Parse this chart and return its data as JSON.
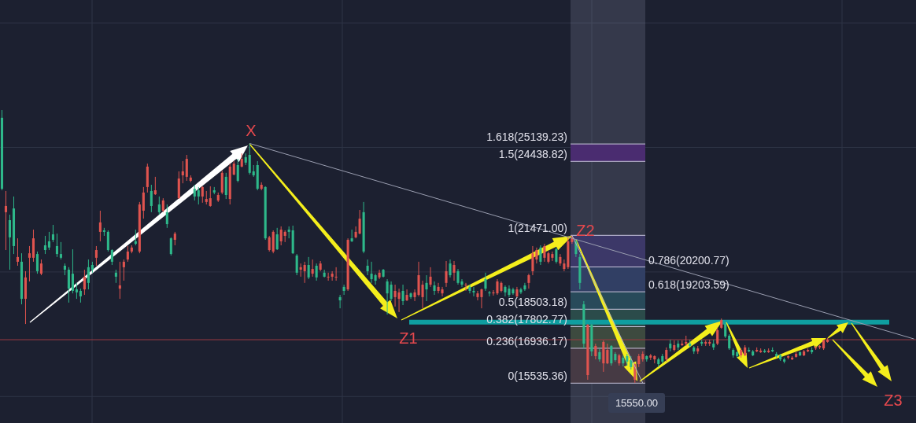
{
  "chart_data": {
    "type": "candlestick",
    "categories": [
      null,
      null,
      null,
      null,
      null,
      null,
      null,
      null,
      null,
      null,
      null,
      null,
      null,
      null,
      null,
      null,
      null,
      null,
      null,
      null,
      null,
      null,
      null,
      null,
      null,
      null,
      null,
      null,
      null,
      null,
      null,
      null,
      null,
      null,
      null,
      null,
      null,
      null,
      null,
      null,
      null,
      null,
      null,
      null,
      null,
      null,
      null,
      null,
      null,
      null,
      null,
      null,
      null,
      null,
      null,
      null,
      null,
      null,
      null,
      null,
      null,
      null,
      null,
      null,
      null,
      null,
      null,
      null,
      null,
      null,
      null,
      null,
      null,
      null,
      null,
      null,
      null,
      null,
      null,
      null,
      null,
      null,
      null,
      null,
      null,
      null,
      null,
      null,
      null,
      null,
      null,
      null,
      null,
      null,
      null,
      null,
      null,
      null,
      null,
      null,
      null,
      null,
      null,
      null,
      null,
      null,
      null,
      null,
      null,
      null,
      null,
      null,
      null,
      null,
      null,
      null,
      null,
      null,
      null,
      null,
      null,
      null,
      null,
      null,
      null,
      null,
      null,
      null,
      null,
      null,
      null,
      null,
      null,
      null,
      null,
      null,
      null,
      null,
      null,
      null,
      null,
      null,
      null,
      null,
      null,
      null,
      null,
      null,
      null,
      null,
      null,
      null,
      null,
      null,
      null,
      null,
      null,
      null,
      null,
      null,
      null,
      null,
      null,
      null,
      null,
      null,
      null,
      null,
      null,
      null,
      null,
      null,
      null,
      null,
      null,
      null,
      null,
      null,
      null,
      null,
      null,
      null,
      null,
      null,
      null,
      null,
      null,
      null,
      null,
      null,
      null,
      null,
      null,
      null,
      null,
      null,
      null,
      null,
      null,
      null,
      null,
      null,
      null,
      null,
      null,
      null,
      null,
      null,
      null,
      null,
      null,
      null,
      null,
      null,
      null,
      null,
      null,
      null,
      null,
      null,
      null,
      null,
      null,
      null,
      null,
      null,
      null,
      null,
      null,
      null,
      null,
      null,
      null
    ],
    "ohlc": [
      [
        23340,
        26500,
        23280,
        26190
      ],
      [
        22650,
        23250,
        20880,
        22400
      ],
      [
        21390,
        22300,
        20090,
        22080
      ],
      [
        21040,
        23030,
        20720,
        22550
      ],
      [
        20600,
        21350,
        20250,
        20410
      ],
      [
        18920,
        20750,
        18700,
        20410
      ],
      [
        19780,
        20030,
        17910,
        18920
      ],
      [
        20750,
        21040,
        19620,
        20570
      ],
      [
        21350,
        21700,
        20410,
        20570
      ],
      [
        20030,
        20820,
        19930,
        20720
      ],
      [
        20340,
        20500,
        19870,
        19930
      ],
      [
        20880,
        21450,
        20720,
        21070
      ],
      [
        20980,
        21610,
        20880,
        21230
      ],
      [
        21290,
        21890,
        21200,
        21510
      ],
      [
        20720,
        21540,
        20600,
        21040
      ],
      [
        20570,
        21200,
        20500,
        20720
      ],
      [
        20090,
        20340,
        19870,
        20250
      ],
      [
        19330,
        20190,
        18770,
        20090
      ],
      [
        19240,
        20910,
        19140,
        19930
      ],
      [
        19180,
        19560,
        18920,
        19300
      ],
      [
        19020,
        19330,
        18770,
        19240
      ],
      [
        19810,
        20090,
        19080,
        19300
      ],
      [
        19560,
        20500,
        19300,
        20190
      ],
      [
        20090,
        20410,
        19970,
        20280
      ],
      [
        20880,
        21040,
        20250,
        20570
      ],
      [
        21990,
        22460,
        21230,
        21610
      ],
      [
        21610,
        21770,
        21450,
        21670
      ],
      [
        20880,
        21670,
        20820,
        21610
      ],
      [
        20410,
        20910,
        20280,
        20880
      ],
      [
        19810,
        20090,
        19560,
        19970
      ],
      [
        19460,
        20410,
        18920,
        19330
      ],
      [
        20410,
        20500,
        19650,
        20190
      ],
      [
        20820,
        21040,
        20410,
        20500
      ],
      [
        20980,
        21070,
        20750,
        20820
      ],
      [
        21130,
        21700,
        21070,
        21230
      ],
      [
        22710,
        22810,
        20750,
        20820
      ],
      [
        23190,
        23410,
        22140,
        22460
      ],
      [
        24230,
        24350,
        23190,
        23410
      ],
      [
        22650,
        23500,
        22400,
        23250
      ],
      [
        23280,
        23820,
        23090,
        23120
      ],
      [
        22400,
        23030,
        22300,
        22710
      ],
      [
        22870,
        22960,
        22400,
        22460
      ],
      [
        21920,
        22710,
        21770,
        22400
      ],
      [
        20720,
        21390,
        20660,
        21350
      ],
      [
        21540,
        21610,
        21070,
        21290
      ],
      [
        23750,
        24040,
        22930,
        22960
      ],
      [
        24040,
        24450,
        23560,
        23880
      ],
      [
        24540,
        24700,
        23660,
        23820
      ],
      [
        23790,
        23880,
        23600,
        23660
      ],
      [
        23030,
        23500,
        22870,
        23340
      ],
      [
        23030,
        23410,
        22710,
        23280
      ],
      [
        23410,
        23440,
        22780,
        23030
      ],
      [
        22930,
        23250,
        22710,
        22810
      ],
      [
        22960,
        23440,
        22620,
        22650
      ],
      [
        23190,
        23410,
        23120,
        23280
      ],
      [
        23090,
        23190,
        22810,
        22870
      ],
      [
        23980,
        24070,
        23120,
        23190
      ],
      [
        23090,
        23980,
        22930,
        23820
      ],
      [
        24230,
        24350,
        22710,
        22930
      ],
      [
        24350,
        24450,
        23880,
        23910
      ],
      [
        23660,
        24540,
        23600,
        24290
      ],
      [
        24540,
        24760,
        24200,
        24230
      ],
      [
        24390,
        24760,
        24290,
        24610
      ],
      [
        23980,
        25160,
        23910,
        24700
      ],
      [
        23880,
        24290,
        23820,
        24040
      ],
      [
        23340,
        24450,
        23280,
        24290
      ],
      [
        23500,
        23600,
        23280,
        23340
      ],
      [
        21350,
        23440,
        21290,
        23410
      ],
      [
        21390,
        21450,
        20820,
        20880
      ],
      [
        21610,
        21670,
        20750,
        20820
      ],
      [
        20910,
        21770,
        20880,
        21510
      ],
      [
        21700,
        21830,
        21070,
        21230
      ],
      [
        21610,
        21670,
        21200,
        21450
      ],
      [
        21610,
        21830,
        21350,
        21700
      ],
      [
        20750,
        21860,
        20720,
        21670
      ],
      [
        19970,
        20720,
        19870,
        20660
      ],
      [
        20190,
        20340,
        19810,
        20090
      ],
      [
        20280,
        20410,
        19560,
        20030
      ],
      [
        19780,
        20600,
        19710,
        20280
      ],
      [
        20120,
        20500,
        19810,
        19930
      ],
      [
        19780,
        20340,
        19650,
        20250
      ],
      [
        20340,
        20440,
        20030,
        20090
      ],
      [
        19810,
        20090,
        19780,
        19970
      ],
      [
        19810,
        19970,
        19650,
        19780
      ],
      [
        19930,
        20030,
        19650,
        19810
      ],
      [
        19810,
        20190,
        19650,
        19780
      ],
      [
        18860,
        19080,
        18540,
        18990
      ],
      [
        19240,
        19490,
        19080,
        19400
      ],
      [
        21290,
        21350,
        19240,
        19300
      ],
      [
        21230,
        21700,
        21200,
        21350
      ],
      [
        21610,
        21830,
        21350,
        21390
      ],
      [
        22140,
        22490,
        21510,
        21540
      ],
      [
        20820,
        22810,
        20750,
        22400
      ],
      [
        20030,
        20500,
        19870,
        20250
      ],
      [
        19710,
        20410,
        19560,
        19930
      ],
      [
        19650,
        19930,
        19490,
        19870
      ],
      [
        19970,
        20090,
        19710,
        19780
      ],
      [
        19810,
        20120,
        19780,
        20090
      ],
      [
        19140,
        19710,
        18290,
        19620
      ],
      [
        18920,
        19620,
        18830,
        19490
      ],
      [
        19240,
        19490,
        18610,
        18990
      ],
      [
        19180,
        19330,
        18390,
        18920
      ],
      [
        18830,
        19490,
        18670,
        19240
      ],
      [
        19080,
        19300,
        18830,
        18860
      ],
      [
        18990,
        19180,
        18920,
        19140
      ],
      [
        19180,
        19300,
        18830,
        18990
      ],
      [
        19870,
        20410,
        19020,
        19080
      ],
      [
        19490,
        19650,
        18540,
        18990
      ],
      [
        19300,
        19870,
        18830,
        19560
      ],
      [
        19810,
        20190,
        19400,
        19490
      ],
      [
        19240,
        19620,
        19080,
        19460
      ],
      [
        19400,
        19560,
        19140,
        19240
      ],
      [
        19300,
        19400,
        19020,
        19140
      ],
      [
        20030,
        20440,
        19400,
        19560
      ],
      [
        19870,
        20500,
        19780,
        20340
      ],
      [
        20280,
        20440,
        19650,
        19970
      ],
      [
        19560,
        20120,
        19490,
        20030
      ],
      [
        19490,
        19710,
        19400,
        19620
      ],
      [
        19490,
        19560,
        19240,
        19460
      ],
      [
        19240,
        19490,
        19140,
        19400
      ],
      [
        19180,
        19400,
        19020,
        19240
      ],
      [
        19140,
        19240,
        18860,
        18990
      ],
      [
        19300,
        19330,
        18540,
        18990
      ],
      [
        19330,
        19970,
        19240,
        19710
      ],
      [
        19140,
        19240,
        19020,
        19180
      ],
      [
        19180,
        19270,
        19050,
        19140
      ],
      [
        19620,
        19710,
        19080,
        19140
      ],
      [
        19560,
        19620,
        19180,
        19240
      ],
      [
        19180,
        19460,
        19020,
        19400
      ],
      [
        19080,
        19460,
        18990,
        19330
      ],
      [
        19140,
        19370,
        19080,
        19300
      ],
      [
        19300,
        19400,
        18990,
        19020
      ],
      [
        19180,
        19370,
        19110,
        19300
      ],
      [
        19300,
        19560,
        19240,
        19460
      ],
      [
        19870,
        19930,
        19330,
        19560
      ],
      [
        20750,
        21040,
        19870,
        20030
      ],
      [
        20880,
        20980,
        20340,
        20500
      ],
      [
        20410,
        21070,
        20280,
        20980
      ],
      [
        21040,
        21130,
        20410,
        20570
      ],
      [
        20750,
        20820,
        20340,
        20410
      ],
      [
        20720,
        20820,
        20440,
        20570
      ],
      [
        20410,
        20980,
        20340,
        20910
      ],
      [
        20600,
        20720,
        20250,
        20340
      ],
      [
        20340,
        20500,
        20030,
        20120
      ],
      [
        21230,
        21390,
        20120,
        20190
      ],
      [
        21390,
        21470,
        21130,
        21200
      ],
      [
        20720,
        21290,
        20600,
        21230
      ],
      [
        19560,
        20720,
        19300,
        20600
      ],
      [
        17120,
        18830,
        16930,
        18700
      ],
      [
        17880,
        17910,
        15670,
        15860
      ],
      [
        16810,
        17910,
        16620,
        17880
      ],
      [
        17030,
        17120,
        16490,
        16620
      ],
      [
        16490,
        16930,
        16400,
        16780
      ],
      [
        17190,
        17250,
        15990,
        16330
      ],
      [
        16870,
        17120,
        16300,
        16330
      ],
      [
        16330,
        17060,
        16240,
        17030
      ],
      [
        16460,
        16780,
        16400,
        16710
      ],
      [
        16650,
        16710,
        16240,
        16330
      ],
      [
        16330,
        16650,
        16210,
        16560
      ],
      [
        16400,
        16710,
        16240,
        16620
      ],
      [
        16180,
        16620,
        16080,
        16460
      ],
      [
        16300,
        16330,
        15550,
        15670
      ],
      [
        16620,
        16710,
        16180,
        16300
      ],
      [
        16710,
        16810,
        16400,
        16490
      ],
      [
        16490,
        16650,
        16400,
        16620
      ],
      [
        16650,
        16710,
        16460,
        16560
      ],
      [
        16620,
        16650,
        16330,
        16490
      ],
      [
        16300,
        16560,
        16180,
        16490
      ],
      [
        16400,
        16710,
        16330,
        16620
      ],
      [
        16870,
        16970,
        16400,
        16490
      ],
      [
        16930,
        17280,
        16810,
        17120
      ],
      [
        17060,
        17250,
        16810,
        16870
      ],
      [
        16970,
        17250,
        16870,
        17120
      ],
      [
        17120,
        17250,
        17030,
        17060
      ],
      [
        17190,
        17440,
        17030,
        17120
      ],
      [
        17030,
        17280,
        16970,
        17120
      ],
      [
        16810,
        17030,
        16710,
        16970
      ],
      [
        16930,
        17030,
        16710,
        16810
      ],
      [
        17120,
        17280,
        17030,
        17190
      ],
      [
        17190,
        17250,
        17030,
        17120
      ],
      [
        17190,
        17280,
        17030,
        17120
      ],
      [
        16970,
        17280,
        16870,
        17120
      ],
      [
        17660,
        17760,
        17060,
        17120
      ],
      [
        18070,
        18130,
        17720,
        17760
      ],
      [
        17410,
        17980,
        17350,
        17910
      ],
      [
        16930,
        17500,
        16870,
        17440
      ],
      [
        16650,
        16930,
        16560,
        16870
      ],
      [
        16620,
        16810,
        16560,
        16780
      ],
      [
        16870,
        16930,
        16560,
        16650
      ],
      [
        16970,
        17060,
        16620,
        16650
      ],
      [
        16810,
        16970,
        16780,
        16870
      ],
      [
        16650,
        16870,
        16620,
        16810
      ],
      [
        16870,
        16970,
        16780,
        16810
      ],
      [
        16840,
        16930,
        16750,
        16780
      ],
      [
        16780,
        16900,
        16750,
        16840
      ],
      [
        16840,
        16930,
        16750,
        16780
      ],
      [
        16810,
        16970,
        16780,
        16870
      ],
      [
        16620,
        16780,
        16560,
        16710
      ],
      [
        16490,
        16710,
        16430,
        16650
      ],
      [
        16400,
        16560,
        16330,
        16490
      ],
      [
        16620,
        16650,
        16490,
        16560
      ],
      [
        16560,
        16620,
        16460,
        16490
      ],
      [
        16710,
        16780,
        16560,
        16590
      ],
      [
        16650,
        16810,
        16620,
        16780
      ],
      [
        16810,
        16870,
        16620,
        16650
      ],
      [
        16870,
        16930,
        16780,
        16810
      ],
      [
        16780,
        16970,
        16710,
        16870
      ],
      [
        16970,
        17030,
        16870,
        16930
      ],
      [
        17030,
        17060,
        16900,
        16970
      ],
      [
        17250,
        17280,
        16870,
        16930
      ],
      [
        17280,
        17350,
        17160,
        17190
      ],
      null,
      null,
      null,
      null,
      null,
      null,
      null,
      null,
      null,
      null,
      null,
      null,
      null,
      null,
      null,
      null,
      null,
      null,
      null,
      null,
      null,
      null
    ],
    "colors": [
      "#2eb88a",
      "#e0544f",
      "#2eb88a",
      "#2eb88a",
      "#e0544f",
      "#2eb88a",
      "#e0544f",
      "#e0544f",
      "#e0544f",
      "#2eb88a",
      "#e0544f",
      "#2eb88a",
      "#2eb88a",
      "#2eb88a",
      "#2eb88a",
      "#2eb88a",
      "#2eb88a",
      "#2eb88a",
      "#2eb88a",
      "#2eb88a",
      "#2eb88a",
      "#e0544f",
      "#2eb88a",
      "#2eb88a",
      "#e0544f",
      "#e0544f",
      "#2eb88a",
      "#2eb88a",
      "#2eb88a",
      "#2eb88a",
      "#e0544f",
      "#e0544f",
      "#e0544f",
      "#e0544f",
      "#2eb88a",
      "#e0544f",
      "#e0544f",
      "#e0544f",
      "#2eb88a",
      "#e0544f",
      "#2eb88a",
      "#e0544f",
      "#2eb88a",
      "#2eb88a",
      "#e0544f",
      "#e0544f",
      "#e0544f",
      "#e0544f",
      "#e0544f",
      "#2eb88a",
      "#2eb88a",
      "#e0544f",
      "#e0544f",
      "#e0544f",
      "#2eb88a",
      "#e0544f",
      "#e0544f",
      "#2eb88a",
      "#e0544f",
      "#e0544f",
      "#2eb88a",
      "#e0544f",
      "#2eb88a",
      "#2eb88a",
      "#2eb88a",
      "#2eb88a",
      "#e0544f",
      "#2eb88a",
      "#e0544f",
      "#e0544f",
      "#2eb88a",
      "#e0544f",
      "#e0544f",
      "#2eb88a",
      "#2eb88a",
      "#2eb88a",
      "#e0544f",
      "#e0544f",
      "#2eb88a",
      "#e0544f",
      "#2eb88a",
      "#e0544f",
      "#2eb88a",
      "#e0544f",
      "#e0544f",
      "#e0544f",
      "#2eb88a",
      "#2eb88a",
      "#e0544f",
      "#2eb88a",
      "#e0544f",
      "#e0544f",
      "#2eb88a",
      "#2eb88a",
      "#2eb88a",
      "#2eb88a",
      "#e0544f",
      "#2eb88a",
      "#2eb88a",
      "#2eb88a",
      "#e0544f",
      "#e0544f",
      "#2eb88a",
      "#e0544f",
      "#2eb88a",
      "#e0544f",
      "#e0544f",
      "#e0544f",
      "#2eb88a",
      "#e0544f",
      "#2eb88a",
      "#e0544f",
      "#e0544f",
      "#e0544f",
      "#2eb88a",
      "#e0544f",
      "#2eb88a",
      "#2eb88a",
      "#e0544f",
      "#2eb88a",
      "#2eb88a",
      "#e0544f",
      "#e0544f",
      "#2eb88a",
      "#2eb88a",
      "#e0544f",
      "#e0544f",
      "#e0544f",
      "#2eb88a",
      "#2eb88a",
      "#2eb88a",
      "#e0544f",
      "#2eb88a",
      "#2eb88a",
      "#e0544f",
      "#e0544f",
      "#e0544f",
      "#2eb88a",
      "#e0544f",
      "#e0544f",
      "#e0544f",
      "#2eb88a",
      "#e0544f",
      "#e0544f",
      "#e0544f",
      "#e0544f",
      "#2eb88a",
      "#2eb88a",
      "#2eb88a",
      "#e0544f",
      "#2eb88a",
      "#e0544f",
      "#2eb88a",
      "#e0544f",
      "#e0544f",
      "#2eb88a",
      "#2eb88a",
      "#e0544f",
      "#2eb88a",
      "#2eb88a",
      "#2eb88a",
      "#e0544f",
      "#e0544f",
      "#e0544f",
      "#2eb88a",
      "#e0544f",
      "#e0544f",
      "#2eb88a",
      "#2eb88a",
      "#e0544f",
      "#2eb88a",
      "#e0544f",
      "#2eb88a",
      "#e0544f",
      "#e0544f",
      "#2eb88a",
      "#2eb88a",
      "#e0544f",
      "#2eb88a",
      "#e0544f",
      "#e0544f",
      "#2eb88a",
      "#e0544f",
      "#e0544f",
      "#2eb88a",
      "#2eb88a",
      "#2eb88a",
      "#2eb88a",
      "#e0544f",
      "#e0544f",
      "#2eb88a",
      "#2eb88a",
      "#e0544f",
      "#e0544f",
      "#2eb88a",
      "#e0544f",
      "#2eb88a",
      "#2eb88a",
      "#2eb88a",
      "#2eb88a",
      "#e0544f",
      "#e0544f",
      "#e0544f",
      "#2eb88a",
      "#e0544f",
      "#e0544f",
      "#2eb88a",
      "#e0544f",
      "#e0544f",
      "#e0544f",
      "#e0544f",
      null,
      null,
      null,
      null,
      null,
      null,
      null,
      null,
      null,
      null,
      null,
      null,
      null,
      null,
      null,
      null,
      null,
      null,
      null,
      null,
      null,
      null
    ],
    "series": [
      {
        "type": "line",
        "color": "#9a9eb0",
        "values": [
          null,
          null,
          null,
          null,
          null,
          null,
          null,
          null,
          null,
          null,
          null,
          null,
          null,
          null,
          null,
          null,
          null,
          null,
          null,
          null,
          null,
          null,
          null,
          null,
          null,
          null,
          null,
          null,
          null,
          null,
          null,
          null,
          null,
          null,
          null,
          null,
          null,
          null,
          null,
          null,
          null,
          null,
          null,
          null,
          null,
          null,
          null,
          null,
          null,
          null,
          null,
          null,
          null,
          null,
          null,
          null,
          null,
          null,
          null,
          null,
          null,
          null,
          null,
          25160,
          null,
          null,
          null,
          null,
          null,
          null,
          null,
          null,
          null,
          null,
          null,
          null,
          null,
          null,
          null,
          null,
          null,
          null,
          null,
          null,
          null,
          null,
          null,
          null,
          null,
          null,
          null,
          null,
          null,
          null,
          null,
          null,
          null,
          null,
          null,
          null,
          null,
          null,
          null,
          null,
          null,
          null,
          null,
          null,
          null,
          null,
          null,
          null,
          null,
          null,
          null,
          null,
          null,
          null,
          null,
          null,
          null,
          null,
          null,
          null,
          null,
          null,
          null,
          null,
          null,
          null,
          null,
          null,
          null,
          null,
          null,
          null,
          null,
          null,
          null,
          null,
          null,
          null,
          null,
          null,
          null,
          null,
          null,
          null,
          null,
          null,
          null,
          null,
          null,
          null,
          null,
          null,
          null,
          null,
          null,
          null,
          null,
          null,
          null,
          null,
          null,
          null,
          null,
          null,
          null,
          null,
          null,
          null,
          null,
          null,
          null,
          null,
          null,
          null,
          null,
          null,
          null,
          null,
          null,
          null,
          null,
          null,
          null,
          null,
          null,
          null,
          null,
          null,
          null,
          null,
          null,
          null,
          null,
          null,
          null,
          null,
          null,
          null,
          null,
          null,
          null,
          null,
          null,
          null,
          null,
          null,
          null,
          null,
          null,
          null,
          null,
          null,
          null,
          null,
          null,
          null,
          null,
          null,
          null,
          null,
          null,
          null,
          null,
          null,
          null,
          null,
          null,
          null,
          17310
        ]
      },
      {
        "type": "line",
        "color": "#b3b6c4",
        "values": [
          null,
          null,
          null,
          null,
          null,
          null,
          null,
          null,
          null,
          null,
          null,
          null,
          null,
          null,
          null,
          null,
          null,
          null,
          null,
          null,
          null,
          null,
          null,
          null,
          null,
          null,
          null,
          null,
          null,
          null,
          null,
          null,
          null,
          null,
          null,
          null,
          null,
          null,
          null,
          null,
          null,
          null,
          null,
          null,
          null,
          null,
          null,
          null,
          null,
          null,
          null,
          null,
          null,
          null,
          null,
          null,
          null,
          null,
          null,
          null,
          null,
          null,
          null,
          null,
          null,
          null,
          null,
          null,
          null,
          null,
          null,
          null,
          null,
          null,
          null,
          null,
          null,
          null,
          null,
          null,
          null,
          null,
          null,
          null,
          null,
          null,
          null,
          null,
          null,
          null,
          null,
          null,
          null,
          null,
          null,
          null,
          null,
          null,
          null,
          null,
          null,
          null,
          null,
          null,
          null,
          null,
          null,
          null,
          null,
          null,
          null,
          null,
          null,
          null,
          null,
          null,
          null,
          null,
          null,
          null,
          null,
          null,
          null,
          null,
          null,
          null,
          null,
          null,
          null,
          null,
          null,
          null,
          null,
          null,
          null,
          null,
          null,
          null,
          null,
          null,
          null,
          null,
          null,
          null,
          null,
          21470,
          null,
          null,
          null,
          null,
          null,
          null,
          null,
          null,
          null,
          null,
          null,
          null,
          null,
          null,
          null,
          null,
          null,
          15540,
          null,
          null,
          null,
          null,
          null,
          null,
          null,
          null,
          null,
          null,
          null,
          null,
          null,
          null,
          null,
          null,
          null,
          null,
          null,
          null,
          null,
          null,
          null,
          null,
          null,
          null,
          null,
          null,
          null,
          null,
          null,
          null,
          null,
          null,
          null,
          null,
          null,
          null,
          null,
          null,
          null,
          null,
          null,
          null,
          null,
          null,
          null,
          null,
          null,
          null,
          null,
          null,
          null,
          null,
          null,
          null,
          null,
          null,
          null,
          null,
          null,
          null,
          null,
          null,
          null,
          null,
          null,
          null,
          null
        ]
      }
    ],
    "ylim": [
      13935,
      30920
    ],
    "yticks": [
      {
        "value": 15000,
        "label": null
      },
      {
        "value": 20000,
        "label": null
      },
      {
        "value": 25000,
        "label": null
      },
      {
        "value": 30000,
        "label": null
      }
    ],
    "grid": true,
    "tick_labels": false,
    "ref_lines": [
      {
        "axis": "y",
        "value": 25139.23,
        "label": "1.618(25139.23)",
        "color": "#c9c5dc"
      },
      {
        "axis": "y",
        "value": 24438.82,
        "label": "1.5(24438.82)",
        "color": "#c9c5dc"
      },
      {
        "axis": "y",
        "value": 21471,
        "label": "1(21471.00)",
        "color": "#c9c5dc"
      },
      {
        "axis": "y",
        "value": 20200.77,
        "label": "0.786(20200.77)",
        "color": "#c9c5dc"
      },
      {
        "axis": "y",
        "value": 19203.59,
        "label": "0.618(19203.59)",
        "color": "#c9c5dc"
      },
      {
        "axis": "y",
        "value": 18503.18,
        "label": "0.5(18503.18)",
        "color": "#c9c5dc"
      },
      {
        "axis": "y",
        "value": 17802.77,
        "label": "0.382(17802.77)",
        "color": "#c9c5dc"
      },
      {
        "axis": "y",
        "value": 16936.17,
        "label": "0.236(16936.17)",
        "color": "#c9c5dc"
      },
      {
        "axis": "y",
        "value": 15535.36,
        "label": "0(15535.36)",
        "color": "#c9c5dc"
      },
      {
        "axis": "y",
        "value": 17980,
        "color": "#0f9ea0"
      },
      {
        "axis": "y",
        "value": 17280,
        "color": "#9e3a42"
      }
    ],
    "bands": [
      {
        "axis": "y",
        "from": 24438.82,
        "to": 25139.23,
        "color": "#4a2c70"
      },
      {
        "axis": "y",
        "from": 20200.77,
        "to": 21471,
        "color": "#3c3868"
      },
      {
        "axis": "y",
        "from": 19203.59,
        "to": 20200.77,
        "color": "#313f64"
      },
      {
        "axis": "y",
        "from": 18503.18,
        "to": 19203.59,
        "color": "#284a5a"
      },
      {
        "axis": "y",
        "from": 17802.77,
        "to": 18503.18,
        "color": "#2b4b4a"
      },
      {
        "axis": "y",
        "from": 16936.17,
        "to": 17802.77,
        "color": "#3d4a3f"
      },
      {
        "axis": "y",
        "from": 15535.36,
        "to": 16936.17,
        "color": "#463a44"
      }
    ],
    "annotations": [
      "X",
      "Z1",
      "Z2",
      "Z3",
      "15550.00"
    ]
  }
}
